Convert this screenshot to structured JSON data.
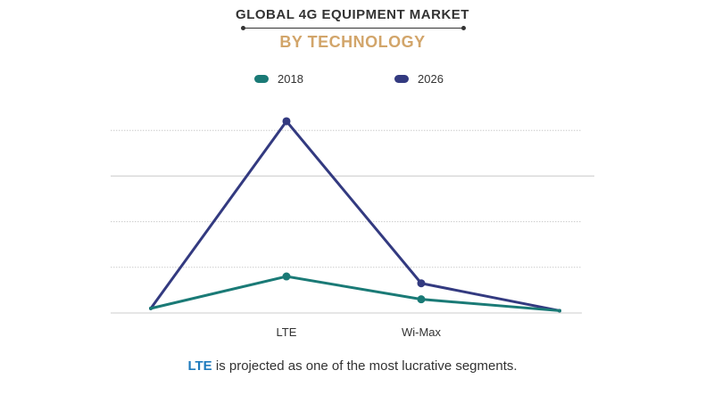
{
  "header": {
    "title": "GLOBAL 4G EQUIPMENT MARKET",
    "subtitle": "BY TECHNOLOGY"
  },
  "caption": {
    "highlight": "LTE",
    "rest": " is projected as one of the most lucrative segments."
  },
  "colors": {
    "s2018": "#1a7a76",
    "s2026": "#333a80",
    "grid": "#cccccc",
    "title": "#333333",
    "subtitle": "#d2a56a",
    "highlight": "#1f7bbd"
  },
  "chart_data": {
    "type": "line",
    "title": "GLOBAL 4G EQUIPMENT MARKET",
    "subtitle": "BY TECHNOLOGY",
    "categories": [
      "",
      "LTE",
      "Wi-Max",
      ""
    ],
    "series": [
      {
        "name": "2018",
        "values": [
          1,
          8,
          3,
          0.5
        ]
      },
      {
        "name": "2026",
        "values": [
          1,
          42,
          6.5,
          0.5
        ]
      }
    ],
    "ylim": [
      0,
      50
    ],
    "grid": true,
    "legend": "top-center",
    "xlabel": "",
    "ylabel": ""
  }
}
